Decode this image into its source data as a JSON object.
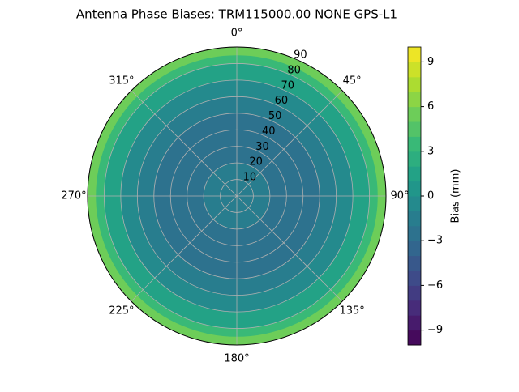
{
  "chart_data": {
    "type": "polar-contour",
    "title": "Antenna Phase Biases: TRM115000.00    NONE GPS-L1",
    "colormap": "viridis",
    "field": {
      "r": [
        0,
        10,
        20,
        30,
        40,
        50,
        60,
        70,
        80,
        85,
        90
      ],
      "values": [
        -1,
        -1.5,
        -2,
        -2.5,
        -2.5,
        -2.5,
        -2,
        -1,
        1,
        3,
        5
      ]
    },
    "xticks": [
      {
        "value": 0,
        "label": "0°"
      },
      {
        "value": 45,
        "label": "45°"
      },
      {
        "value": 90,
        "label": "90°"
      },
      {
        "value": 135,
        "label": "135°"
      },
      {
        "value": 180,
        "label": "180°"
      },
      {
        "value": 225,
        "label": "225°"
      },
      {
        "value": 270,
        "label": "270°"
      },
      {
        "value": 315,
        "label": "315°"
      }
    ],
    "ylim": [
      0,
      90
    ],
    "yticks": [
      10,
      20,
      30,
      40,
      50,
      60,
      70,
      80,
      90
    ],
    "grid": true,
    "colorbar": {
      "label": "Bias (mm)",
      "lim": [
        -10,
        10
      ],
      "step": 1,
      "ticks": [
        {
          "value": -9,
          "label": "−9"
        },
        {
          "value": -6,
          "label": "−6"
        },
        {
          "value": -3,
          "label": "−3"
        },
        0,
        3,
        6,
        9
      ]
    }
  }
}
